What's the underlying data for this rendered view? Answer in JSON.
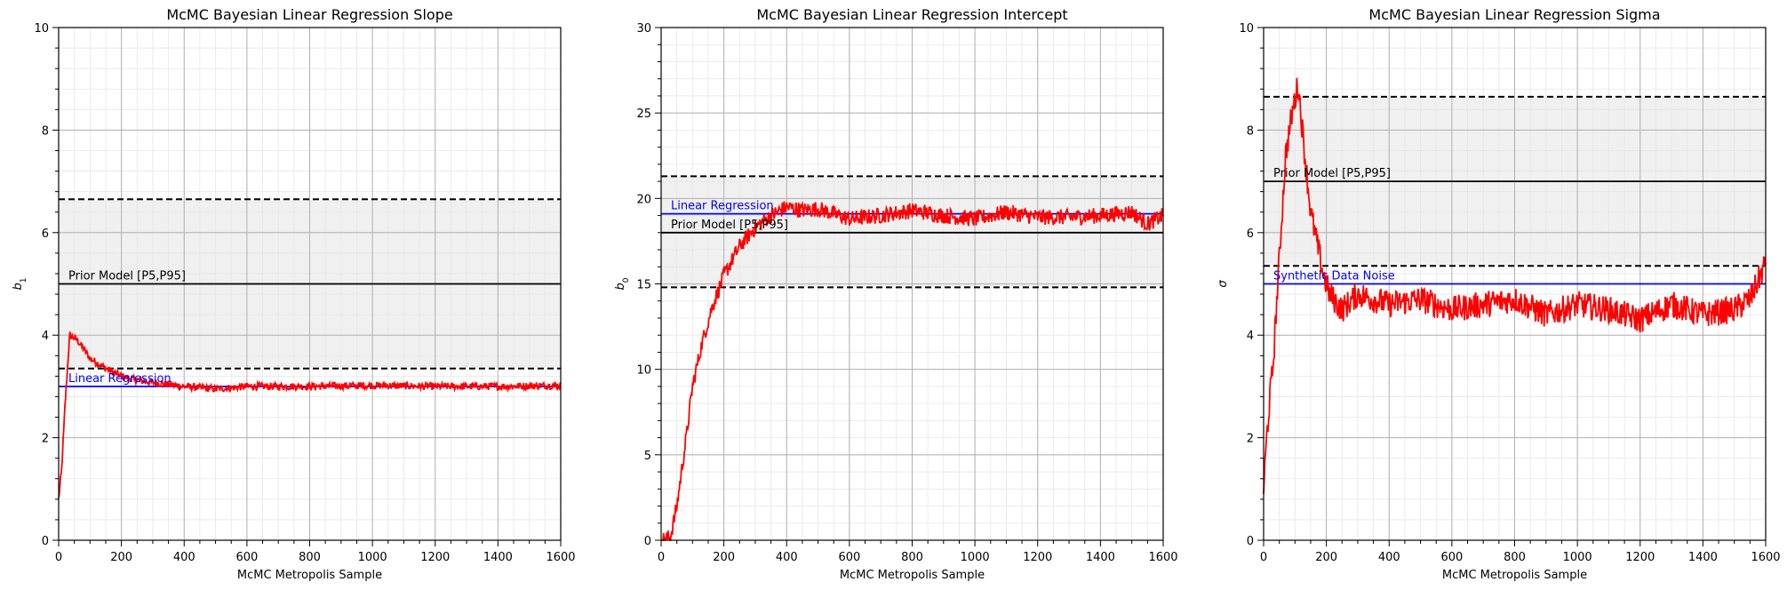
{
  "chart_data": [
    {
      "type": "line",
      "title": "McMC Bayesian Linear Regression Slope",
      "xlabel": "McMC Metropolis Sample",
      "ylabel": "b",
      "ylabel_sub": "1",
      "xlim": [
        0,
        1600
      ],
      "ylim": [
        0,
        10
      ],
      "xticks": [
        "0",
        "200",
        "400",
        "600",
        "800",
        "1000",
        "1200",
        "1400",
        "1600"
      ],
      "yticks": [
        "0",
        "2",
        "4",
        "6",
        "8",
        "10"
      ],
      "grid": true,
      "band": [
        3.35,
        6.65
      ],
      "band_color": "#f0f0f0",
      "hlines": [
        {
          "y": 6.65,
          "color": "#000000",
          "style": "dashed"
        },
        {
          "y": 3.35,
          "color": "#000000",
          "style": "dashed"
        },
        {
          "y": 5.0,
          "color": "#000000",
          "style": "solid",
          "label": "Prior Model [P5,P95]"
        },
        {
          "y": 3.0,
          "color": "#0000ff",
          "style": "solid",
          "label": "Linear Regression"
        }
      ],
      "series": [
        {
          "color": "#ff0000",
          "x": [
            0,
            10,
            20,
            35,
            60,
            100,
            150,
            200,
            250,
            300,
            400,
            500,
            600,
            800,
            1000,
            1200,
            1400,
            1600
          ],
          "y": [
            0.8,
            1.4,
            2.6,
            4.0,
            3.9,
            3.55,
            3.35,
            3.2,
            3.12,
            3.08,
            3.0,
            2.95,
            3.0,
            3.0,
            3.02,
            3.0,
            3.0,
            3.02
          ]
        }
      ]
    },
    {
      "type": "line",
      "title": "McMC Bayesian Linear Regression Intercept",
      "xlabel": "McMC Metropolis Sample",
      "ylabel": "b",
      "ylabel_sub": "0",
      "xlim": [
        0,
        1600
      ],
      "ylim": [
        0,
        30
      ],
      "xticks": [
        "0",
        "200",
        "400",
        "600",
        "800",
        "1000",
        "1200",
        "1400",
        "1600"
      ],
      "yticks": [
        "0",
        "5",
        "10",
        "15",
        "20",
        "25",
        "30"
      ],
      "grid": true,
      "band": [
        14.8,
        21.3
      ],
      "band_color": "#f0f0f0",
      "hlines": [
        {
          "y": 21.3,
          "color": "#000000",
          "style": "dashed"
        },
        {
          "y": 14.8,
          "color": "#000000",
          "style": "dashed"
        },
        {
          "y": 18.0,
          "color": "#000000",
          "style": "solid",
          "label": "Prior Model [P5,P95]"
        },
        {
          "y": 19.1,
          "color": "#0000ff",
          "style": "solid",
          "label": "Linear Regression"
        }
      ],
      "series": [
        {
          "color": "#ff0000",
          "x": [
            0,
            30,
            50,
            80,
            100,
            130,
            160,
            200,
            250,
            300,
            350,
            400,
            450,
            500,
            600,
            700,
            800,
            900,
            1000,
            1100,
            1200,
            1300,
            1400,
            1500,
            1550,
            1600
          ],
          "y": [
            0.0,
            0.2,
            2.0,
            6.0,
            9.0,
            11.5,
            13.5,
            15.5,
            17.2,
            18.3,
            19.0,
            19.5,
            19.3,
            19.4,
            18.8,
            19.0,
            19.3,
            19.0,
            18.8,
            19.2,
            18.9,
            18.9,
            19.0,
            19.2,
            18.5,
            19.0
          ]
        }
      ]
    },
    {
      "type": "line",
      "title": "McMC Bayesian Linear Regression Sigma",
      "xlabel": "McMC Metropolis Sample",
      "ylabel": "σ",
      "xlim": [
        0,
        1600
      ],
      "ylim": [
        0,
        10
      ],
      "xticks": [
        "0",
        "200",
        "400",
        "600",
        "800",
        "1000",
        "1200",
        "1400",
        "1600"
      ],
      "yticks": [
        "0",
        "2",
        "4",
        "6",
        "8",
        "10"
      ],
      "grid": true,
      "band": [
        5.35,
        8.65
      ],
      "band_color": "#f0f0f0",
      "hlines": [
        {
          "y": 8.65,
          "color": "#000000",
          "style": "dashed"
        },
        {
          "y": 5.35,
          "color": "#000000",
          "style": "dashed"
        },
        {
          "y": 7.0,
          "color": "#000000",
          "style": "solid",
          "label": "Prior Model [P5,P95]"
        },
        {
          "y": 5.0,
          "color": "#0000ff",
          "style": "solid",
          "label": "Synthetic Data Noise"
        }
      ],
      "series": [
        {
          "color": "#ff0000",
          "x": [
            0,
            10,
            20,
            30,
            50,
            70,
            90,
            110,
            130,
            150,
            170,
            190,
            210,
            250,
            300,
            400,
            500,
            600,
            700,
            800,
            900,
            1000,
            1100,
            1200,
            1300,
            1400,
            1500,
            1550,
            1600
          ],
          "y": [
            1.0,
            2.0,
            2.8,
            3.4,
            5.5,
            7.5,
            8.3,
            8.9,
            7.6,
            6.4,
            5.8,
            5.2,
            4.8,
            4.5,
            4.8,
            4.6,
            4.7,
            4.5,
            4.6,
            4.7,
            4.4,
            4.6,
            4.5,
            4.3,
            4.6,
            4.4,
            4.5,
            4.7,
            5.4
          ]
        }
      ]
    }
  ]
}
